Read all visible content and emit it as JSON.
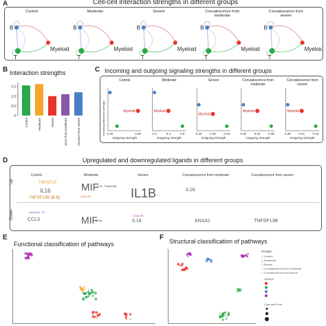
{
  "panel_a": {
    "letter": "A",
    "title": "Cell-cell interaction strengths in different groups",
    "groups": [
      "Control",
      "Moderate",
      "Severe",
      "Convalescence from moderate",
      "Convalescence from severe"
    ],
    "nodes": [
      "B",
      "T",
      "Myeloid"
    ]
  },
  "panel_b": {
    "letter": "B",
    "title": "Interaction strengths",
    "colors": [
      "#2aa84a",
      "#f4a62a",
      "#e8332a",
      "#8a56a8",
      "#4a7fc8"
    ]
  },
  "panel_c": {
    "letter": "C",
    "title": "Incoming and outgoing signaling strengths in different groups",
    "ylabel": "Incoming interaction strength",
    "xlabel": "Outgoing strength",
    "point_label": "Myeloid"
  },
  "panel_d": {
    "letter": "D",
    "title": "Upregulated and downregulated ligands in different groups",
    "row_up": "Up",
    "row_down": "Down",
    "columns": [
      "Control",
      "Moderate",
      "Severe",
      "Convalescence from moderate",
      "Convalescence from severe"
    ],
    "up_items": {
      "tnfsf13": "TNFSF13",
      "il16": "IL16",
      "tnfsf13b": "TNFSF13B (B-B)",
      "mif": "MIF",
      "mif_note": "(T-B, T-Myeloid)",
      "lgals9": "LGALS9",
      "il1b": "IL1B",
      "conv_il16": "IL16"
    },
    "down_items": {
      "ctrl_note": "Myeloid-B, T-B",
      "ccl3": "CCL3",
      "mif": "MIF",
      "mif_note": "(B-B)",
      "lgals9": "LGALS9",
      "il16": "IL16",
      "anxa1": "ANXA1",
      "tnfsf13b": "TNFSF13B"
    }
  },
  "panel_e": {
    "letter": "E",
    "title": "Functional classification of pathways"
  },
  "panel_f": {
    "letter": "F",
    "title": "Structural classification of pathways",
    "legend_groups_title": "Groups",
    "legend_groups": [
      "Control",
      "Moderate",
      "Severe",
      "Convalescence from moderate",
      "Convalescence from severe"
    ],
    "legend_cluster_title": "clusters",
    "legend_commun_title": "Commun.Prob."
  },
  "chart_data": [
    {
      "type": "bar",
      "title": "Interaction strengths",
      "categories": [
        "Control",
        "Moderate",
        "Severe",
        "Convalescence from moderate",
        "Convalescence from severe"
      ],
      "values": [
        1.55,
        1.62,
        1.0,
        1.1,
        1.2
      ],
      "yticks": [
        "0",
        "0.5",
        "1.0",
        "1.5"
      ],
      "ylim": [
        0,
        1.7
      ]
    },
    {
      "type": "scatter",
      "title": "Incoming and outgoing signaling strengths",
      "xlabel": "Outgoing strength",
      "ylabel": "Incoming interaction strength",
      "subplots": [
        {
          "name": "Control",
          "xticks": [
            "0.40",
            "0.60"
          ],
          "points": [
            {
              "label": "B",
              "x": 0.4,
              "y": 0.6
            },
            {
              "label": "Myeloid",
              "x": 0.6,
              "y": 0.3
            },
            {
              "label": "T",
              "x": 0.45,
              "y": 0.05
            }
          ]
        },
        {
          "name": "Moderate",
          "xticks": [
            "0.2",
            "0.4",
            "0.6"
          ],
          "points": [
            {
              "label": "B",
              "x": 0.2,
              "y": 0.6
            },
            {
              "label": "Myeloid",
              "x": 0.4,
              "y": 0.3
            },
            {
              "label": "T",
              "x": 0.6,
              "y": 0.05
            }
          ]
        },
        {
          "name": "Severe",
          "xticks": [
            "0.20",
            "0.30",
            "0.40"
          ],
          "points": [
            {
              "label": "B",
              "x": 0.2,
              "y": 0.4
            },
            {
              "label": "Myeloid",
              "x": 0.3,
              "y": 0.25
            },
            {
              "label": "T",
              "x": 0.4,
              "y": 0.05
            }
          ]
        },
        {
          "name": "Convalescence from moderate",
          "xticks": [
            "0.30",
            "0.34",
            "0.38"
          ],
          "points": [
            {
              "label": "B",
              "x": 0.3,
              "y": 0.4
            },
            {
              "label": "Myeloid",
              "x": 0.34,
              "y": 0.3
            },
            {
              "label": "T",
              "x": 0.38,
              "y": 0.05
            }
          ]
        },
        {
          "name": "Convalescence from severe",
          "xticks": [
            "0.39",
            "0.41",
            "0.43"
          ],
          "points": [
            {
              "label": "B",
              "x": 0.39,
              "y": 0.4
            },
            {
              "label": "Myeloid",
              "x": 0.41,
              "y": 0.3
            },
            {
              "label": "T",
              "x": 0.43,
              "y": 0.05
            }
          ]
        }
      ]
    }
  ]
}
